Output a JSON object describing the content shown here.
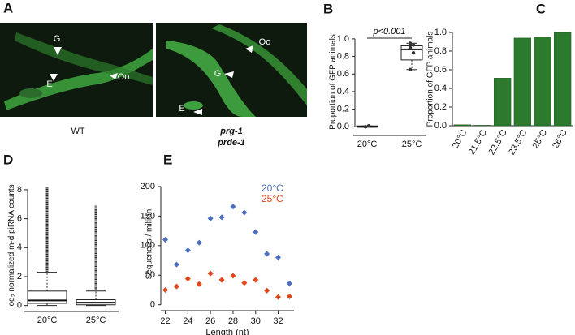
{
  "images": {
    "panel": "A",
    "left": {
      "caption": "WT",
      "labels": [
        "G",
        "E",
        "Oo"
      ]
    },
    "right": {
      "caption": [
        "prg-1",
        "prde-1"
      ],
      "labels": [
        "Oo",
        "G",
        "E"
      ]
    }
  },
  "chart_data": [
    {
      "type": "box",
      "panel": "B",
      "y_label": "Proportion of GFP animals",
      "annotation": "p<0.001",
      "categories": [
        "20°C",
        "25°C"
      ],
      "boxes": [
        {
          "min": 0,
          "q1": 0,
          "median": 0,
          "q3": 0.01,
          "max": 0.01,
          "points": [
            0,
            0.01
          ]
        },
        {
          "min": 0.65,
          "q1": 0.76,
          "median": 0.88,
          "q3": 0.92,
          "max": 0.95,
          "points": [
            0.65,
            0.84,
            0.9,
            0.93,
            0.95
          ]
        }
      ],
      "ylim": [
        -0.08,
        1.1
      ],
      "yticks": [
        {
          "value": 0,
          "label": "0.0"
        },
        {
          "value": 0.2,
          "label": "0.2"
        },
        {
          "value": 0.4,
          "label": "0.4"
        },
        {
          "value": 0.6,
          "label": "0.6"
        },
        {
          "value": 0.8,
          "label": "0.8"
        },
        {
          "value": 1,
          "label": "1.0"
        }
      ]
    },
    {
      "type": "bar",
      "panel": "C",
      "y_label": "Proportion of GFP animals",
      "categories": [
        "20°C",
        "21.5°C",
        "22.5°C",
        "23.5°C",
        "25°C",
        "26°C"
      ],
      "values": [
        0.01,
        0.005,
        0.51,
        0.94,
        0.95,
        1.0
      ],
      "color": "#2b7a2e",
      "ylim": [
        0,
        1
      ],
      "yticks": [
        {
          "value": 0,
          "label": "0.0"
        },
        {
          "value": 0.2,
          "label": "0.2"
        },
        {
          "value": 0.4,
          "label": "0.4"
        },
        {
          "value": 0.6,
          "label": "0.6"
        },
        {
          "value": 0.8,
          "label": "0.8"
        },
        {
          "value": 1,
          "label": "1.0"
        }
      ]
    },
    {
      "type": "box",
      "panel": "D",
      "y_label": [
        "log",
        "2",
        " normalized m-d piRNA counts"
      ],
      "categories": [
        "20°C",
        "25°C"
      ],
      "boxes": [
        {
          "min": 0,
          "q1": 0.15,
          "median": 0.35,
          "q3": 1.0,
          "max": 2.3,
          "outlier_min": 2.35,
          "outlier_max": 8.2
        },
        {
          "min": 0,
          "q1": 0.05,
          "median": 0.2,
          "q3": 0.4,
          "max": 1.0,
          "outlier_min": 1.05,
          "outlier_max": 6.9
        }
      ],
      "ylim": [
        -0.3,
        8.5
      ],
      "yticks": [
        0,
        2,
        4,
        6,
        8
      ]
    },
    {
      "type": "scatter",
      "panel": "E",
      "x_label": "Length (nt)",
      "y_label": "Sequences / million",
      "x": [
        22,
        23,
        24,
        25,
        26,
        27,
        28,
        29,
        30,
        31,
        32,
        33
      ],
      "series": [
        {
          "name": "20°C",
          "color": "#4f6fbf",
          "values": [
            110,
            68,
            92,
            105,
            146,
            148,
            166,
            156,
            123,
            86,
            80,
            36
          ]
        },
        {
          "name": "25°C",
          "color": "#e0481b",
          "values": [
            25,
            31,
            44,
            35,
            53,
            42,
            49,
            37,
            42,
            24,
            13,
            14
          ]
        }
      ],
      "xlim": [
        21.6,
        33.4
      ],
      "xticks": [
        22,
        24,
        26,
        28,
        30,
        32
      ],
      "ylim": [
        -10,
        215
      ],
      "yticks": [
        0,
        50,
        100,
        150,
        200
      ],
      "legend": "upper right"
    }
  ]
}
